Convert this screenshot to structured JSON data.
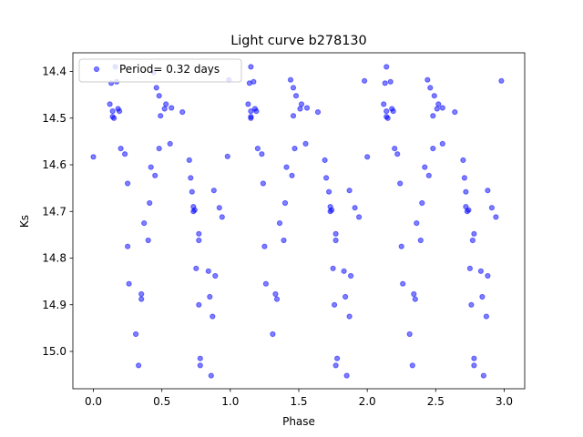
{
  "chart_data": {
    "type": "scatter",
    "title": "Light curve b278130",
    "xlabel": "Phase",
    "ylabel": "Ks",
    "xlim": [
      -0.15,
      3.15
    ],
    "ylim": [
      15.08,
      14.36
    ],
    "y_inverted": true,
    "grid": false,
    "legend_placement": "top-left",
    "xticks": [
      "0.0",
      "0.5",
      "1.0",
      "1.5",
      "2.0",
      "2.5",
      "3.0"
    ],
    "xtick_values": [
      0,
      0.5,
      1.0,
      1.5,
      2.0,
      2.5,
      3.0
    ],
    "yticks": [
      "14.4",
      "14.5",
      "14.6",
      "14.7",
      "14.8",
      "14.9",
      "15.0"
    ],
    "ytick_values": [
      14.4,
      14.5,
      14.6,
      14.7,
      14.8,
      14.9,
      15.0
    ],
    "marker_color": "#0000ff",
    "series": [
      {
        "name": "Period= 0.32 days",
        "points": [
          [
            0.0,
            14.583
          ],
          [
            0.12,
            14.47
          ],
          [
            0.13,
            14.425
          ],
          [
            0.14,
            14.485
          ],
          [
            0.14,
            14.497
          ],
          [
            0.15,
            14.5
          ],
          [
            0.16,
            14.39
          ],
          [
            0.17,
            14.422
          ],
          [
            0.18,
            14.48
          ],
          [
            0.19,
            14.485
          ],
          [
            0.2,
            14.565
          ],
          [
            0.23,
            14.577
          ],
          [
            0.25,
            14.64
          ],
          [
            0.25,
            14.775
          ],
          [
            0.26,
            14.855
          ],
          [
            0.31,
            14.963
          ],
          [
            0.33,
            15.03
          ],
          [
            0.35,
            14.877
          ],
          [
            0.35,
            14.888
          ],
          [
            0.37,
            14.725
          ],
          [
            0.4,
            14.762
          ],
          [
            0.41,
            14.682
          ],
          [
            0.42,
            14.605
          ],
          [
            0.44,
            14.402
          ],
          [
            0.45,
            14.623
          ],
          [
            0.46,
            14.435
          ],
          [
            0.48,
            14.565
          ],
          [
            0.48,
            14.452
          ],
          [
            0.49,
            14.495
          ],
          [
            0.52,
            14.48
          ],
          [
            0.53,
            14.47
          ],
          [
            0.56,
            14.555
          ],
          [
            0.57,
            14.478
          ],
          [
            0.65,
            14.487
          ],
          [
            0.7,
            14.59
          ],
          [
            0.71,
            14.628
          ],
          [
            0.72,
            14.658
          ],
          [
            0.73,
            14.69
          ],
          [
            0.73,
            14.7
          ],
          [
            0.74,
            14.697
          ],
          [
            0.75,
            14.822
          ],
          [
            0.77,
            14.9
          ],
          [
            0.77,
            14.762
          ],
          [
            0.77,
            14.748
          ],
          [
            0.78,
            15.015
          ],
          [
            0.78,
            15.03
          ],
          [
            0.84,
            14.828
          ],
          [
            0.85,
            14.883
          ],
          [
            0.86,
            15.052
          ],
          [
            0.87,
            14.925
          ],
          [
            0.88,
            14.655
          ],
          [
            0.89,
            14.838
          ],
          [
            0.92,
            14.692
          ],
          [
            0.94,
            14.712
          ],
          [
            0.98,
            14.582
          ],
          [
            0.99,
            14.418
          ],
          [
            1.13,
            14.47
          ],
          [
            1.14,
            14.425
          ],
          [
            1.15,
            14.485
          ],
          [
            1.15,
            14.497
          ],
          [
            1.15,
            14.5
          ],
          [
            1.15,
            14.39
          ],
          [
            1.17,
            14.422
          ],
          [
            1.18,
            14.48
          ],
          [
            1.19,
            14.485
          ],
          [
            1.2,
            14.565
          ],
          [
            1.23,
            14.577
          ],
          [
            1.24,
            14.64
          ],
          [
            1.25,
            14.775
          ],
          [
            1.26,
            14.855
          ],
          [
            1.31,
            14.963
          ],
          [
            1.33,
            14.877
          ],
          [
            1.34,
            14.888
          ],
          [
            1.36,
            14.725
          ],
          [
            1.39,
            14.762
          ],
          [
            1.4,
            14.682
          ],
          [
            1.41,
            14.605
          ],
          [
            1.44,
            14.418
          ],
          [
            1.45,
            14.623
          ],
          [
            1.46,
            14.435
          ],
          [
            1.47,
            14.565
          ],
          [
            1.48,
            14.452
          ],
          [
            1.46,
            14.495
          ],
          [
            1.51,
            14.48
          ],
          [
            1.52,
            14.47
          ],
          [
            1.55,
            14.555
          ],
          [
            1.56,
            14.478
          ],
          [
            1.64,
            14.487
          ],
          [
            1.69,
            14.59
          ],
          [
            1.7,
            14.628
          ],
          [
            1.72,
            14.658
          ],
          [
            1.73,
            14.69
          ],
          [
            1.73,
            14.7
          ],
          [
            1.74,
            14.697
          ],
          [
            1.75,
            14.822
          ],
          [
            1.76,
            14.9
          ],
          [
            1.77,
            14.762
          ],
          [
            1.77,
            14.748
          ],
          [
            1.78,
            15.015
          ],
          [
            1.77,
            15.03
          ],
          [
            1.83,
            14.828
          ],
          [
            1.84,
            14.883
          ],
          [
            1.85,
            15.052
          ],
          [
            1.87,
            14.925
          ],
          [
            1.87,
            14.655
          ],
          [
            1.88,
            14.838
          ],
          [
            1.91,
            14.692
          ],
          [
            1.94,
            14.712
          ],
          [
            1.98,
            14.42
          ],
          [
            2.0,
            14.583
          ],
          [
            2.12,
            14.47
          ],
          [
            2.13,
            14.425
          ],
          [
            2.14,
            14.485
          ],
          [
            2.14,
            14.497
          ],
          [
            2.15,
            14.5
          ],
          [
            2.14,
            14.39
          ],
          [
            2.17,
            14.422
          ],
          [
            2.18,
            14.48
          ],
          [
            2.19,
            14.485
          ],
          [
            2.2,
            14.565
          ],
          [
            2.22,
            14.577
          ],
          [
            2.24,
            14.64
          ],
          [
            2.25,
            14.775
          ],
          [
            2.26,
            14.855
          ],
          [
            2.31,
            14.963
          ],
          [
            2.33,
            15.03
          ],
          [
            2.34,
            14.877
          ],
          [
            2.35,
            14.888
          ],
          [
            2.36,
            14.725
          ],
          [
            2.39,
            14.762
          ],
          [
            2.4,
            14.682
          ],
          [
            2.42,
            14.605
          ],
          [
            2.44,
            14.418
          ],
          [
            2.45,
            14.623
          ],
          [
            2.46,
            14.435
          ],
          [
            2.48,
            14.565
          ],
          [
            2.49,
            14.452
          ],
          [
            2.48,
            14.495
          ],
          [
            2.51,
            14.48
          ],
          [
            2.52,
            14.47
          ],
          [
            2.55,
            14.555
          ],
          [
            2.55,
            14.478
          ],
          [
            2.64,
            14.487
          ],
          [
            2.7,
            14.59
          ],
          [
            2.71,
            14.628
          ],
          [
            2.72,
            14.658
          ],
          [
            2.72,
            14.69
          ],
          [
            2.73,
            14.7
          ],
          [
            2.74,
            14.697
          ],
          [
            2.75,
            14.822
          ],
          [
            2.76,
            14.9
          ],
          [
            2.77,
            14.762
          ],
          [
            2.78,
            14.748
          ],
          [
            2.78,
            15.015
          ],
          [
            2.78,
            15.03
          ],
          [
            2.83,
            14.828
          ],
          [
            2.84,
            14.883
          ],
          [
            2.85,
            15.052
          ],
          [
            2.87,
            14.925
          ],
          [
            2.88,
            14.655
          ],
          [
            2.88,
            14.838
          ],
          [
            2.91,
            14.692
          ],
          [
            2.94,
            14.712
          ],
          [
            2.98,
            14.42
          ]
        ]
      }
    ]
  }
}
